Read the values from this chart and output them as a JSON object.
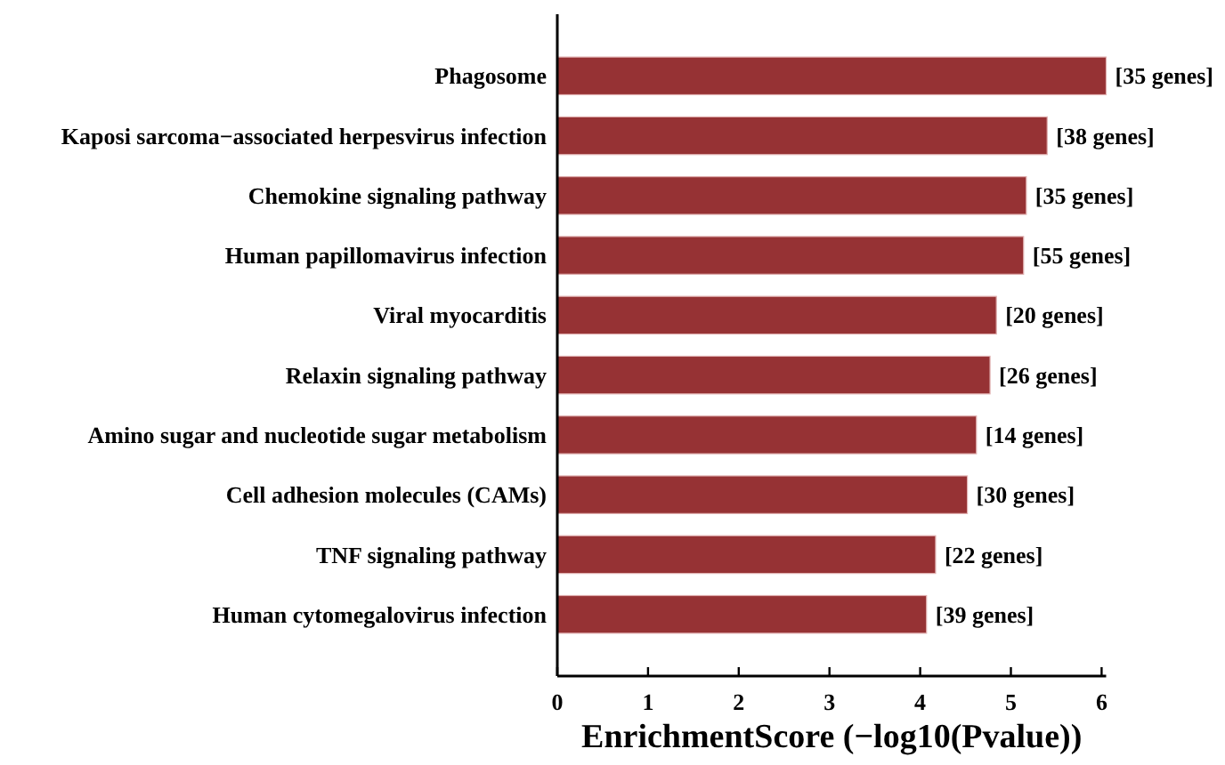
{
  "chart_data": {
    "type": "bar",
    "orientation": "horizontal",
    "xlabel": "EnrichmentScore (−log10(Pvalue))",
    "categories": [
      "Phagosome",
      "Kaposi sarcoma−associated herpesvirus infection",
      "Chemokine signaling pathway",
      "Human papillomavirus infection",
      "Viral myocarditis",
      "Relaxin signaling pathway",
      "Amino sugar and nucleotide sugar metabolism",
      "Cell adhesion molecules (CAMs)",
      "TNF signaling pathway",
      "Human cytomegalovirus infection"
    ],
    "values": [
      6.05,
      5.4,
      5.17,
      5.14,
      4.84,
      4.77,
      4.62,
      4.52,
      4.17,
      4.07
    ],
    "annotations": [
      {
        "text": "[35 genes]",
        "x": 6.05,
        "y": "Phagosome"
      },
      {
        "text": "[38 genes]",
        "x": 5.4,
        "y": "Kaposi sarcoma−associated herpesvirus infection"
      },
      {
        "text": "[35 genes]",
        "x": 5.17,
        "y": "Chemokine signaling pathway"
      },
      {
        "text": "[55 genes]",
        "x": 5.14,
        "y": "Human papillomavirus infection"
      },
      {
        "text": "[20 genes]",
        "x": 4.84,
        "y": "Viral myocarditis"
      },
      {
        "text": "[26 genes]",
        "x": 4.77,
        "y": "Relaxin signaling pathway"
      },
      {
        "text": "[14 genes]",
        "x": 4.62,
        "y": "Amino sugar and nucleotide sugar metabolism"
      },
      {
        "text": "[30 genes]",
        "x": 4.52,
        "y": "Cell adhesion molecules (CAMs)"
      },
      {
        "text": "[22 genes]",
        "x": 4.17,
        "y": "TNF signaling pathway"
      },
      {
        "text": "[39 genes]",
        "x": 4.07,
        "y": "Human cytomegalovirus infection"
      }
    ],
    "color": "#963234",
    "xlim": [
      0,
      6.05
    ],
    "xticks": [
      0,
      1,
      2,
      3,
      4,
      5,
      6
    ]
  }
}
